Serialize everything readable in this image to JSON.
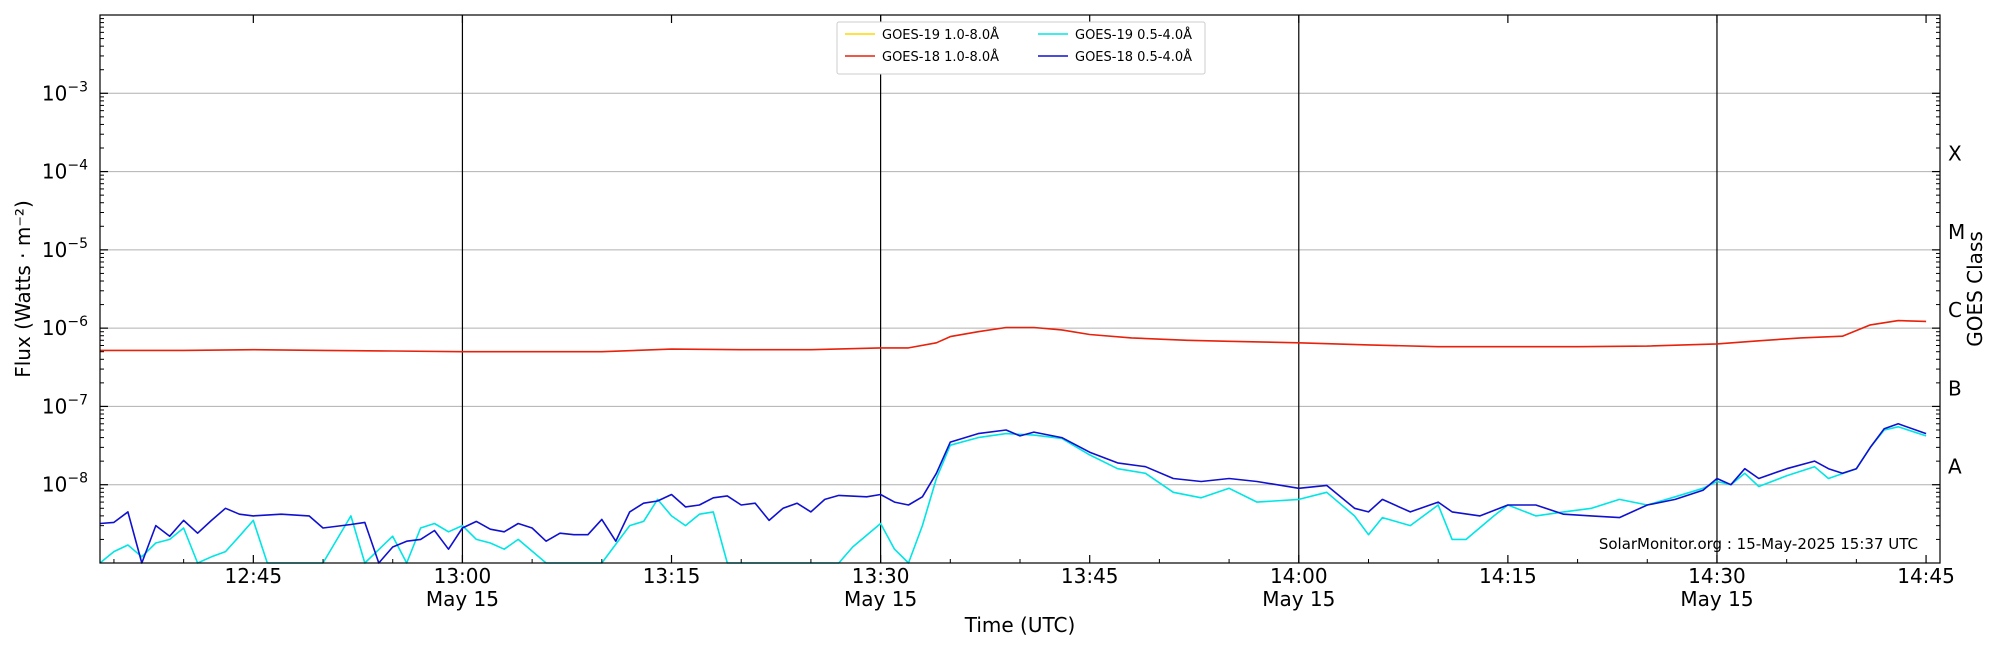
{
  "chart_data": {
    "type": "line",
    "xlabel": "Time (UTC)",
    "ylabel": "Flux (Watts · m⁻²)",
    "ylabel_right": "GOES Class",
    "yscale": "log",
    "xlim": [
      "12:34",
      "14:46"
    ],
    "ylim": [
      1e-09,
      0.01
    ],
    "grid": "horizontal at decades",
    "legend_position": "top-center",
    "x_ticks": [
      {
        "time": "12:45",
        "label": "12:45",
        "date": ""
      },
      {
        "time": "13:00",
        "label": "13:00",
        "date": "May 15"
      },
      {
        "time": "13:15",
        "label": "13:15",
        "date": ""
      },
      {
        "time": "13:30",
        "label": "13:30",
        "date": "May 15"
      },
      {
        "time": "13:45",
        "label": "13:45",
        "date": ""
      },
      {
        "time": "14:00",
        "label": "14:00",
        "date": "May 15"
      },
      {
        "time": "14:15",
        "label": "14:15",
        "date": ""
      },
      {
        "time": "14:30",
        "label": "14:30",
        "date": "May 15"
      },
      {
        "time": "14:45",
        "label": "14:45",
        "date": ""
      }
    ],
    "day_boundary_lines": [
      "13:00",
      "13:30",
      "14:00",
      "14:30"
    ],
    "y_ticks": [
      {
        "value": 1e-08,
        "base": "10",
        "exp": "−8"
      },
      {
        "value": 1e-07,
        "base": "10",
        "exp": "−7"
      },
      {
        "value": 1e-06,
        "base": "10",
        "exp": "−6"
      },
      {
        "value": 1e-05,
        "base": "10",
        "exp": "−5"
      },
      {
        "value": 0.0001,
        "base": "10",
        "exp": "−4"
      },
      {
        "value": 0.001,
        "base": "10",
        "exp": "−3"
      }
    ],
    "goes_classes": [
      {
        "label": "A",
        "value": 1e-08
      },
      {
        "label": "B",
        "value": 1e-07
      },
      {
        "label": "C",
        "value": 1e-06
      },
      {
        "label": "M",
        "value": 1e-05
      },
      {
        "label": "X",
        "value": 0.0001
      }
    ],
    "series": [
      {
        "name": "GOES-19 1.0-8.0Å",
        "color": "#ffd700",
        "points": []
      },
      {
        "name": "GOES-18 1.0-8.0Å",
        "color": "#e8210b",
        "points": [
          [
            "12:34",
            5.2e-07
          ],
          [
            "12:40",
            5.2e-07
          ],
          [
            "12:45",
            5.3e-07
          ],
          [
            "12:50",
            5.2e-07
          ],
          [
            "12:55",
            5.1e-07
          ],
          [
            "13:00",
            5e-07
          ],
          [
            "13:05",
            5e-07
          ],
          [
            "13:10",
            5e-07
          ],
          [
            "13:15",
            5.4e-07
          ],
          [
            "13:20",
            5.3e-07
          ],
          [
            "13:25",
            5.3e-07
          ],
          [
            "13:30",
            5.6e-07
          ],
          [
            "13:32",
            5.6e-07
          ],
          [
            "13:34",
            6.5e-07
          ],
          [
            "13:35",
            7.8e-07
          ],
          [
            "13:37",
            9e-07
          ],
          [
            "13:39",
            1.02e-06
          ],
          [
            "13:41",
            1.02e-06
          ],
          [
            "13:43",
            9.5e-07
          ],
          [
            "13:45",
            8.3e-07
          ],
          [
            "13:48",
            7.5e-07
          ],
          [
            "13:52",
            7e-07
          ],
          [
            "13:55",
            6.8e-07
          ],
          [
            "14:00",
            6.5e-07
          ],
          [
            "14:05",
            6.1e-07
          ],
          [
            "14:10",
            5.8e-07
          ],
          [
            "14:15",
            5.8e-07
          ],
          [
            "14:20",
            5.8e-07
          ],
          [
            "14:25",
            5.9e-07
          ],
          [
            "14:30",
            6.3e-07
          ],
          [
            "14:33",
            6.9e-07
          ],
          [
            "14:36",
            7.5e-07
          ],
          [
            "14:39",
            7.9e-07
          ],
          [
            "14:41",
            1.1e-06
          ],
          [
            "14:43",
            1.25e-06
          ],
          [
            "14:45",
            1.22e-06
          ]
        ]
      },
      {
        "name": "GOES-19 0.5-4.0Å",
        "color": "#00e5e5",
        "points": [
          [
            "12:34",
            1e-09
          ],
          [
            "12:35",
            1.4e-09
          ],
          [
            "12:36",
            1.7e-09
          ],
          [
            "12:37",
            1.2e-09
          ],
          [
            "12:38",
            1.8e-09
          ],
          [
            "12:39",
            2e-09
          ],
          [
            "12:40",
            2.8e-09
          ],
          [
            "12:41",
            1e-09
          ],
          [
            "12:42",
            1.2e-09
          ],
          [
            "12:43",
            1.4e-09
          ],
          [
            "12:44",
            2.2e-09
          ],
          [
            "12:45",
            3.5e-09
          ],
          [
            "12:46",
            1e-09
          ],
          [
            "12:50",
            1e-09
          ],
          [
            "12:52",
            4e-09
          ],
          [
            "12:53",
            1e-09
          ],
          [
            "12:55",
            2.2e-09
          ],
          [
            "12:56",
            1e-09
          ],
          [
            "12:57",
            2.8e-09
          ],
          [
            "12:58",
            3.2e-09
          ],
          [
            "12:59",
            2.5e-09
          ],
          [
            "13:00",
            3e-09
          ],
          [
            "13:01",
            2e-09
          ],
          [
            "13:02",
            1.8e-09
          ],
          [
            "13:03",
            1.5e-09
          ],
          [
            "13:04",
            2e-09
          ],
          [
            "13:06",
            1e-09
          ],
          [
            "13:10",
            1e-09
          ],
          [
            "13:12",
            3e-09
          ],
          [
            "13:13",
            3.4e-09
          ],
          [
            "13:14",
            6.5e-09
          ],
          [
            "13:15",
            4e-09
          ],
          [
            "13:16",
            3e-09
          ],
          [
            "13:17",
            4.2e-09
          ],
          [
            "13:18",
            4.5e-09
          ],
          [
            "13:19",
            1e-09
          ],
          [
            "13:27",
            1e-09
          ],
          [
            "13:28",
            1.6e-09
          ],
          [
            "13:30",
            3.2e-09
          ],
          [
            "13:31",
            1.5e-09
          ],
          [
            "13:32",
            1e-09
          ],
          [
            "13:33",
            3e-09
          ],
          [
            "13:34",
            1.2e-08
          ],
          [
            "13:35",
            3.2e-08
          ],
          [
            "13:37",
            4e-08
          ],
          [
            "13:39",
            4.5e-08
          ],
          [
            "13:41",
            4.3e-08
          ],
          [
            "13:43",
            3.9e-08
          ],
          [
            "13:45",
            2.4e-08
          ],
          [
            "13:47",
            1.6e-08
          ],
          [
            "13:49",
            1.4e-08
          ],
          [
            "13:51",
            8e-09
          ],
          [
            "13:53",
            6.8e-09
          ],
          [
            "13:55",
            9e-09
          ],
          [
            "13:57",
            6e-09
          ],
          [
            "14:00",
            6.5e-09
          ],
          [
            "14:02",
            8e-09
          ],
          [
            "14:04",
            4e-09
          ],
          [
            "14:05",
            2.3e-09
          ],
          [
            "14:06",
            3.8e-09
          ],
          [
            "14:08",
            3e-09
          ],
          [
            "14:10",
            5.5e-09
          ],
          [
            "14:11",
            2e-09
          ],
          [
            "14:12",
            2e-09
          ],
          [
            "14:14",
            4e-09
          ],
          [
            "14:15",
            5.5e-09
          ],
          [
            "14:17",
            4e-09
          ],
          [
            "14:19",
            4.5e-09
          ],
          [
            "14:21",
            5e-09
          ],
          [
            "14:23",
            6.5e-09
          ],
          [
            "14:25",
            5.5e-09
          ],
          [
            "14:27",
            7e-09
          ],
          [
            "14:29",
            9e-09
          ],
          [
            "14:30",
            1.1e-08
          ],
          [
            "14:31",
            1e-08
          ],
          [
            "14:32",
            1.4e-08
          ],
          [
            "14:33",
            9.5e-09
          ],
          [
            "14:35",
            1.3e-08
          ],
          [
            "14:37",
            1.7e-08
          ],
          [
            "14:38",
            1.2e-08
          ],
          [
            "14:40",
            1.6e-08
          ],
          [
            "14:41",
            3e-08
          ],
          [
            "14:42",
            5e-08
          ],
          [
            "14:43",
            5.5e-08
          ],
          [
            "14:45",
            4.2e-08
          ]
        ]
      },
      {
        "name": "GOES-18 0.5-4.0Å",
        "color": "#1010d0",
        "points": [
          [
            "12:34",
            3.2e-09
          ],
          [
            "12:35",
            3.3e-09
          ],
          [
            "12:36",
            4.5e-09
          ],
          [
            "12:37",
            1e-09
          ],
          [
            "12:38",
            3e-09
          ],
          [
            "12:39",
            2.2e-09
          ],
          [
            "12:40",
            3.5e-09
          ],
          [
            "12:41",
            2.4e-09
          ],
          [
            "12:42",
            3.5e-09
          ],
          [
            "12:43",
            5e-09
          ],
          [
            "12:44",
            4.2e-09
          ],
          [
            "12:45",
            4e-09
          ],
          [
            "12:47",
            4.2e-09
          ],
          [
            "12:49",
            4e-09
          ],
          [
            "12:50",
            2.8e-09
          ],
          [
            "12:52",
            3.1e-09
          ],
          [
            "12:53",
            3.3e-09
          ],
          [
            "12:54",
            1e-09
          ],
          [
            "12:55",
            1.6e-09
          ],
          [
            "12:56",
            1.9e-09
          ],
          [
            "12:57",
            2e-09
          ],
          [
            "12:58",
            2.6e-09
          ],
          [
            "12:59",
            1.5e-09
          ],
          [
            "13:00",
            2.8e-09
          ],
          [
            "13:01",
            3.4e-09
          ],
          [
            "13:02",
            2.7e-09
          ],
          [
            "13:03",
            2.5e-09
          ],
          [
            "13:04",
            3.2e-09
          ],
          [
            "13:05",
            2.8e-09
          ],
          [
            "13:06",
            1.9e-09
          ],
          [
            "13:07",
            2.4e-09
          ],
          [
            "13:08",
            2.3e-09
          ],
          [
            "13:09",
            2.3e-09
          ],
          [
            "13:10",
            3.6e-09
          ],
          [
            "13:11",
            1.9e-09
          ],
          [
            "13:12",
            4.5e-09
          ],
          [
            "13:13",
            5.8e-09
          ],
          [
            "13:14",
            6.2e-09
          ],
          [
            "13:15",
            7.5e-09
          ],
          [
            "13:16",
            5.2e-09
          ],
          [
            "13:17",
            5.5e-09
          ],
          [
            "13:18",
            6.8e-09
          ],
          [
            "13:19",
            7.2e-09
          ],
          [
            "13:20",
            5.5e-09
          ],
          [
            "13:21",
            5.8e-09
          ],
          [
            "13:22",
            3.5e-09
          ],
          [
            "13:23",
            5e-09
          ],
          [
            "13:24",
            5.8e-09
          ],
          [
            "13:25",
            4.5e-09
          ],
          [
            "13:26",
            6.5e-09
          ],
          [
            "13:27",
            7.3e-09
          ],
          [
            "13:29",
            7e-09
          ],
          [
            "13:30",
            7.5e-09
          ],
          [
            "13:31",
            6e-09
          ],
          [
            "13:32",
            5.5e-09
          ],
          [
            "13:33",
            7e-09
          ],
          [
            "13:34",
            1.4e-08
          ],
          [
            "13:35",
            3.5e-08
          ],
          [
            "13:37",
            4.5e-08
          ],
          [
            "13:39",
            5e-08
          ],
          [
            "13:40",
            4.2e-08
          ],
          [
            "13:41",
            4.7e-08
          ],
          [
            "13:43",
            4e-08
          ],
          [
            "13:45",
            2.6e-08
          ],
          [
            "13:47",
            1.9e-08
          ],
          [
            "13:49",
            1.7e-08
          ],
          [
            "13:51",
            1.2e-08
          ],
          [
            "13:53",
            1.1e-08
          ],
          [
            "13:55",
            1.2e-08
          ],
          [
            "13:57",
            1.1e-08
          ],
          [
            "14:00",
            9e-09
          ],
          [
            "14:02",
            9.8e-09
          ],
          [
            "14:04",
            5e-09
          ],
          [
            "14:05",
            4.5e-09
          ],
          [
            "14:06",
            6.5e-09
          ],
          [
            "14:08",
            4.5e-09
          ],
          [
            "14:10",
            6e-09
          ],
          [
            "14:11",
            4.5e-09
          ],
          [
            "14:13",
            4e-09
          ],
          [
            "14:15",
            5.5e-09
          ],
          [
            "14:17",
            5.5e-09
          ],
          [
            "14:19",
            4.2e-09
          ],
          [
            "14:21",
            4e-09
          ],
          [
            "14:23",
            3.8e-09
          ],
          [
            "14:25",
            5.5e-09
          ],
          [
            "14:27",
            6.5e-09
          ],
          [
            "14:29",
            8.5e-09
          ],
          [
            "14:30",
            1.2e-08
          ],
          [
            "14:31",
            1e-08
          ],
          [
            "14:32",
            1.6e-08
          ],
          [
            "14:33",
            1.2e-08
          ],
          [
            "14:35",
            1.6e-08
          ],
          [
            "14:37",
            2e-08
          ],
          [
            "14:38",
            1.6e-08
          ],
          [
            "14:39",
            1.4e-08
          ],
          [
            "14:40",
            1.6e-08
          ],
          [
            "14:41",
            3e-08
          ],
          [
            "14:42",
            5.2e-08
          ],
          [
            "14:43",
            6e-08
          ],
          [
            "14:45",
            4.5e-08
          ]
        ]
      }
    ],
    "annotation": "SolarMonitor.org : 15-May-2025 15:37 UTC"
  }
}
